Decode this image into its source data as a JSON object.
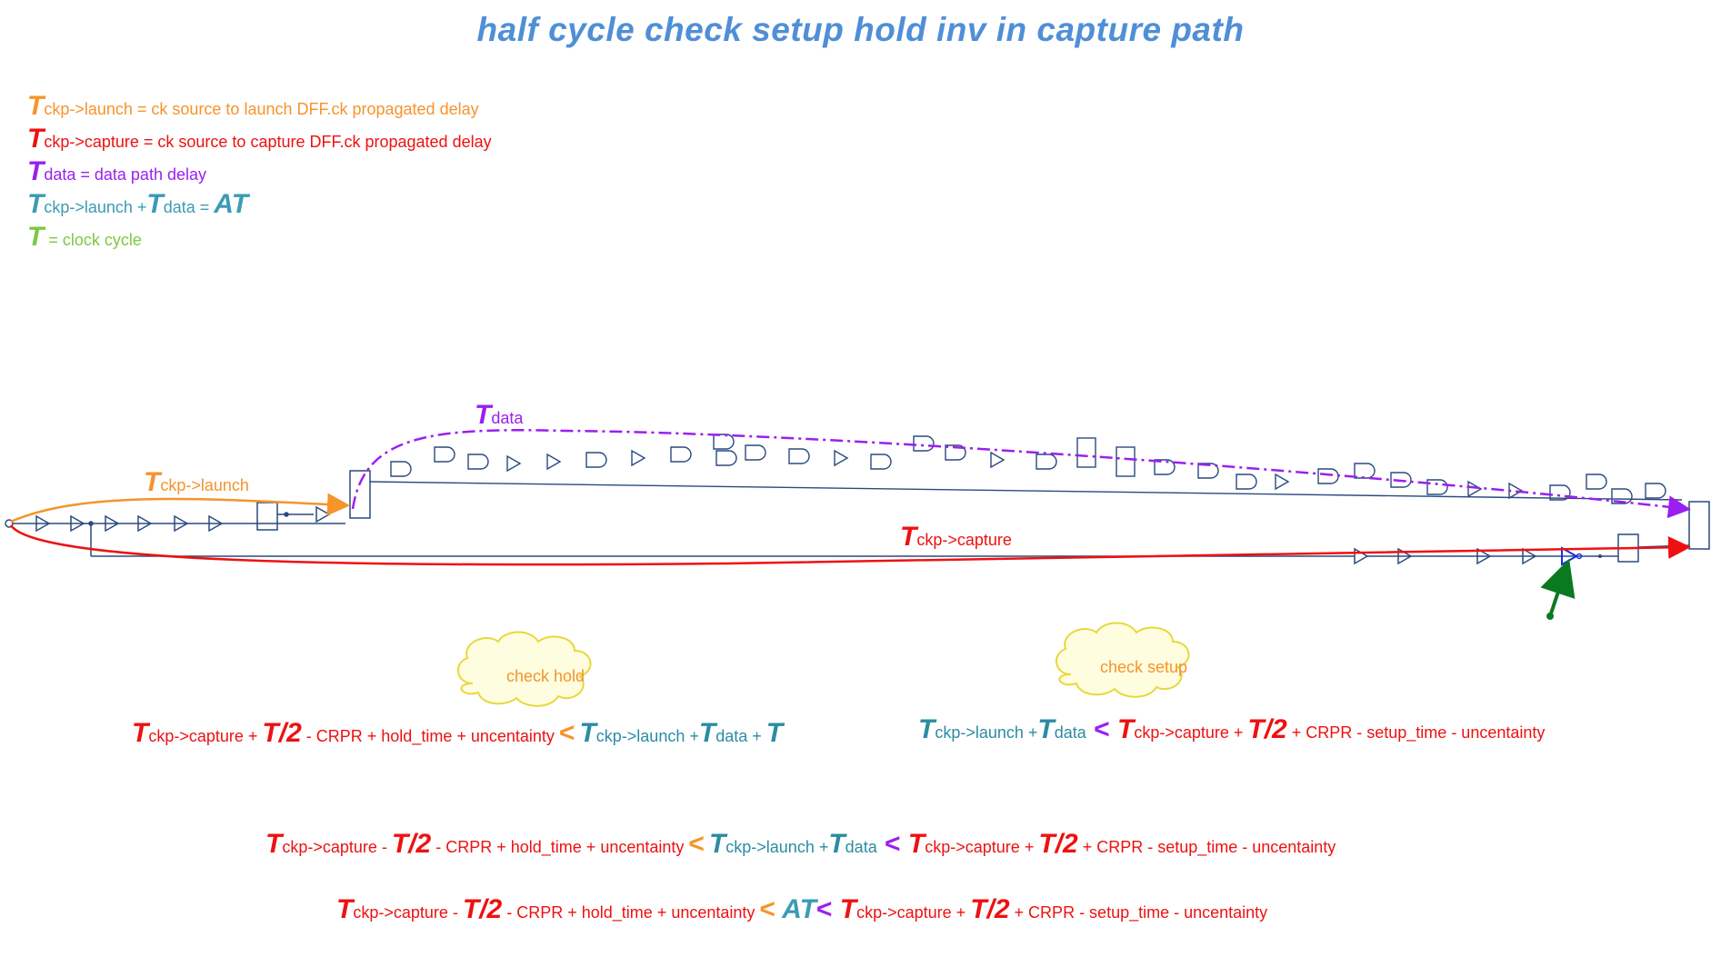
{
  "colors": {
    "title": "#4f8fd6",
    "launch": "#f5942b",
    "capture": "#ee1111",
    "data": "#9b1ff0",
    "at": "#3a9cb4",
    "cycle": "#7dc940",
    "teal": "#2b8ca3",
    "gate": "#2a4a7f",
    "cloud_fill": "#fffde0",
    "cloud_stroke": "#e8d83a",
    "marker": "#0a7a20",
    "inv": "#1a2fe0"
  },
  "title": "half cycle check setup hold inv in capture path",
  "legend": {
    "launch": {
      "T": "T",
      "sub": "ckp->launch",
      "text": " = ck source to launch DFF.ck propagated delay"
    },
    "capture": {
      "T": "T",
      "sub": "ckp->capture",
      "text": " = ck source to capture DFF.ck propagated delay"
    },
    "data": {
      "T": "T",
      "sub": "data",
      "text": " = data path delay"
    },
    "at": {
      "T1": "T",
      "sub1": "ckp->launch",
      "plus": " +",
      "T2": "T",
      "sub2": "data",
      "eqsign": " = ",
      "AT": "AT"
    },
    "cycle": {
      "T": "T",
      "text": "  = clock cycle"
    }
  },
  "diagram": {
    "launch_label": {
      "T": "T",
      "sub": "ckp->launch"
    },
    "data_label": {
      "T": "T",
      "sub": "data"
    },
    "capture_label": {
      "T": "T",
      "sub": "ckp->capture"
    },
    "cloud_hold": "check hold",
    "cloud_setup": "check setup"
  },
  "equations": {
    "hold": {
      "t1": "T",
      "s1": "ckp->capture",
      "p1": " + ",
      "half": "T/2",
      "r1": "  -  CRPR  + hold_time + uncentainty ",
      "lt": "<",
      "t2": "T",
      "s2": "ckp->launch",
      "p2": " +",
      "t3": "T",
      "s3": "data",
      "p3": " + ",
      "t4": "T"
    },
    "setup": {
      "t1": "T",
      "s1": "ckp->launch",
      "p1": " +",
      "t2": "T",
      "s2": "data",
      "lt": " < ",
      "t3": "T",
      "s3": "ckp->capture",
      "p2": " + ",
      "half": "T/2",
      "r1": " + CRPR - setup_time - uncentainty"
    },
    "combined": {
      "t1": "T",
      "s1": "ckp->capture",
      "p1": " - ",
      "half1": "T/2",
      "r1": "  -  CRPR + hold_time + uncentainty ",
      "lt1": "<",
      "t2": "T",
      "s2": "ckp->launch",
      "p2": " +",
      "t3": "T",
      "s3": "data",
      "lt2": " < ",
      "t4": "T",
      "s4": "ckp->capture",
      "p3": " + ",
      "half2": "T/2",
      "r2": " + CRPR - setup_time - uncentainty"
    },
    "final": {
      "t1": "T",
      "s1": "ckp->capture",
      "p1": " - ",
      "half1": "T/2",
      "r1": "  - CRPR + hold_time + uncentainty ",
      "lt1": "<",
      "at": " AT",
      "lt2": "< ",
      "t2": "T",
      "s2": "ckp->capture",
      "p2": " + ",
      "half2": "T/2",
      "r2": " + CRPR - setup_time - uncentainty"
    }
  }
}
